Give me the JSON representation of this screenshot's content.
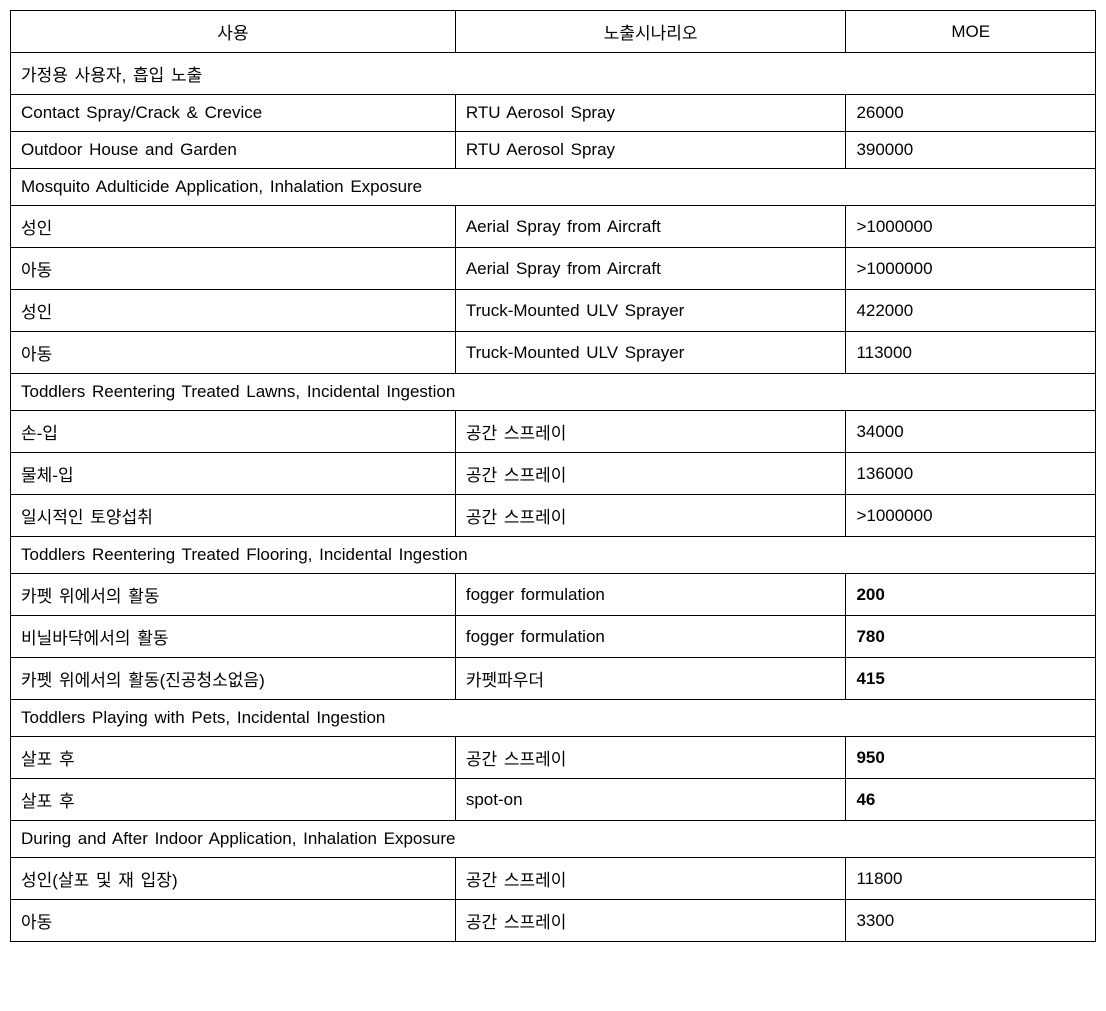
{
  "headers": {
    "use": "사용",
    "scenario": "노출시나리오",
    "moe": "MOE"
  },
  "sections": [
    {
      "title": "가정용 사용자, 흡입 노출",
      "bold": false,
      "rows": [
        {
          "use": "Contact Spray/Crack & Crevice",
          "scenario": "RTU Aerosol Spray",
          "moe": "26000",
          "bold": false
        },
        {
          "use": "Outdoor House and Garden",
          "scenario": "RTU Aerosol Spray",
          "moe": "390000",
          "bold": false
        }
      ]
    },
    {
      "title": "Mosquito Adulticide Application, Inhalation Exposure",
      "bold": true,
      "rows": [
        {
          "use": "성인",
          "scenario": "Aerial Spray from Aircraft",
          "moe": ">1000000",
          "bold": false
        },
        {
          "use": "아동",
          "scenario": "Aerial Spray from Aircraft",
          "moe": ">1000000",
          "bold": false
        },
        {
          "use": "성인",
          "scenario": "Truck-Mounted ULV Sprayer",
          "moe": "422000",
          "bold": false
        },
        {
          "use": "아동",
          "scenario": "Truck-Mounted ULV Sprayer",
          "moe": "113000",
          "bold": false
        }
      ]
    },
    {
      "title": "Toddlers Reentering Treated Lawns, Incidental Ingestion",
      "bold": false,
      "rows": [
        {
          "use": "손-입",
          "scenario": "공간 스프레이",
          "moe": "34000",
          "bold": false
        },
        {
          "use": "물체-입",
          "scenario": "공간 스프레이",
          "moe": "136000",
          "bold": false
        },
        {
          "use": "일시적인 토양섭취",
          "scenario": "공간 스프레이",
          "moe": ">1000000",
          "bold": false
        }
      ]
    },
    {
      "title": "Toddlers Reentering Treated Flooring, Incidental Ingestion",
      "bold": true,
      "rows": [
        {
          "use": "카펫 위에서의 활동",
          "scenario": "fogger formulation",
          "moe": "200",
          "bold": true
        },
        {
          "use": "비닐바닥에서의 활동",
          "scenario": "fogger formulation",
          "moe": "780",
          "bold": true
        },
        {
          "use": "카펫 위에서의 활동(진공청소없음)",
          "scenario": "카펫파우더",
          "moe": "415",
          "bold": true
        }
      ]
    },
    {
      "title": "Toddlers Playing with Pets, Incidental Ingestion",
      "bold": true,
      "rows": [
        {
          "use": "살포 후",
          "scenario": "공간 스프레이",
          "moe": "950",
          "bold": true
        },
        {
          "use": "살포 후",
          "scenario": "spot-on",
          "moe": "46",
          "bold": true
        }
      ]
    },
    {
      "title": "During and After Indoor Application, Inhalation Exposure",
      "bold": false,
      "rows": [
        {
          "use": "성인(살포 및 재 입장)",
          "scenario": "공간 스프레이",
          "moe": "11800",
          "bold": false
        },
        {
          "use": "아동",
          "scenario": "공간 스프레이",
          "moe": "3300",
          "bold": false
        }
      ]
    }
  ]
}
